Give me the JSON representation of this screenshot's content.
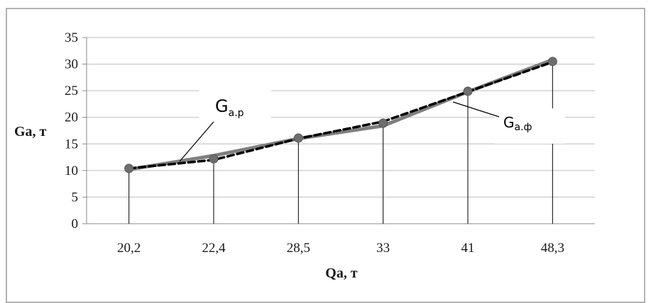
{
  "chart_data": {
    "type": "line",
    "categories": [
      "20,2",
      "22,4",
      "28,5",
      "33",
      "41",
      "48,3"
    ],
    "series": [
      {
        "name": "G",
        "subscript": "а.р",
        "values": [
          10.2,
          12.8,
          16.0,
          18.4,
          24.8,
          30.8
        ],
        "style": "solid",
        "color": "#7f7f7f"
      },
      {
        "name": "G",
        "subscript": "а.ф",
        "values": [
          10.4,
          12.0,
          16.0,
          19.2,
          24.8,
          30.4
        ],
        "style": "dashed",
        "color": "#000000"
      }
    ],
    "marker_values": [
      10.4,
      12.2,
      16.1,
      18.9,
      24.9,
      30.5
    ],
    "xlabel": "Qa, т",
    "ylabel": "Ga, т",
    "ylim": [
      0,
      35
    ],
    "yticks": [
      "0",
      "5",
      "10",
      "15",
      "20",
      "25",
      "30",
      "35"
    ],
    "grid": true,
    "drop_lines": true
  }
}
